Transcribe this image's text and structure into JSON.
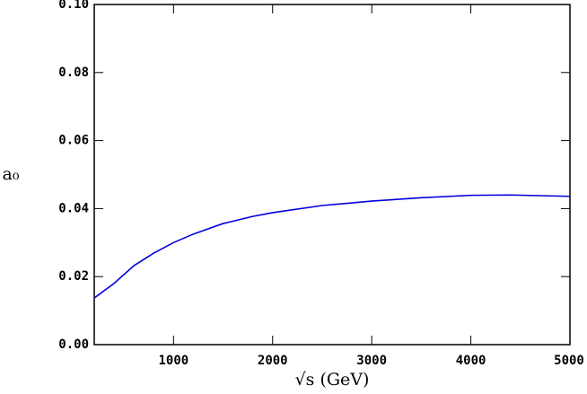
{
  "chart_data": {
    "type": "line",
    "x_label": "√s (GeV)",
    "y_label": "a₀",
    "x": [
      200,
      400,
      600,
      800,
      1000,
      1200,
      1500,
      1800,
      2000,
      2500,
      3000,
      3500,
      4000,
      4400,
      5000
    ],
    "series": [
      {
        "color": "#0000dd",
        "values": [
          0.0137,
          0.018,
          0.0232,
          0.0269,
          0.03,
          0.0325,
          0.0356,
          0.0377,
          0.0388,
          0.0409,
          0.0422,
          0.0432,
          0.0439,
          0.044,
          0.0436
        ]
      }
    ],
    "xlim": [
      200,
      5000
    ],
    "xticks": [
      1000,
      2000,
      3000,
      4000,
      5000
    ],
    "ylim": [
      0,
      0.1
    ],
    "yticks": [
      {
        "value": 0,
        "label": "0.00"
      },
      {
        "value": 0.02,
        "label": "0.02"
      },
      {
        "value": 0.04,
        "label": "0.04"
      },
      {
        "value": 0.06,
        "label": "0.06"
      },
      {
        "value": 0.08,
        "label": "0.08"
      },
      {
        "value": 0.1,
        "label": "0.10"
      }
    ]
  }
}
